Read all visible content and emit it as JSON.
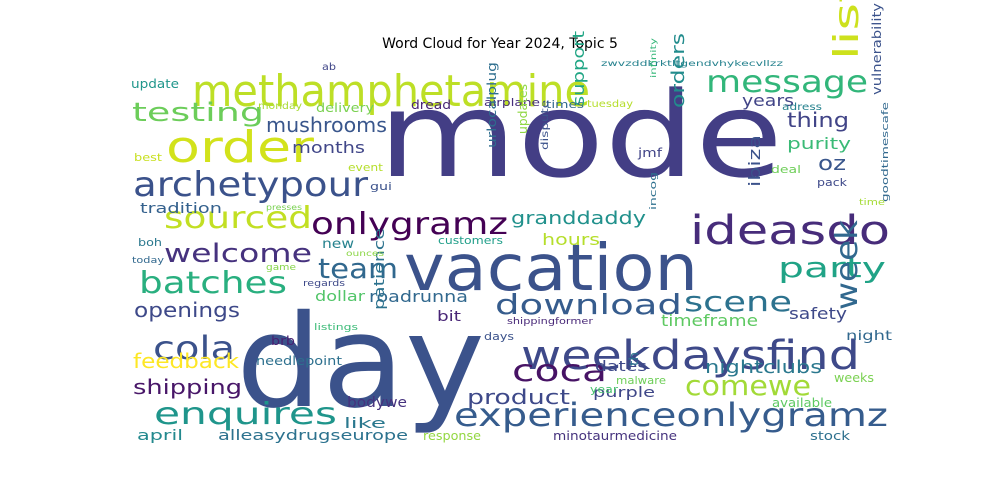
{
  "title": "Word Cloud for Year 2024, Topic 5",
  "words": [
    {
      "text": "mode",
      "color": "#433e85"
    },
    {
      "text": "day",
      "color": "#3b528b"
    },
    {
      "text": "vacation",
      "color": "#3b528b"
    },
    {
      "text": "methamphetamine",
      "color": "#bddf26"
    },
    {
      "text": "order",
      "color": "#d2e21b"
    },
    {
      "text": "weekdaysfind",
      "color": "#3e4989"
    },
    {
      "text": "ideasdo",
      "color": "#472c7a"
    },
    {
      "text": "archetypour",
      "color": "#3b528b"
    },
    {
      "text": "experienceonlygramz",
      "color": "#365c8d"
    },
    {
      "text": "sourced",
      "color": "#c2df23"
    },
    {
      "text": "onlygramz",
      "color": "#440154"
    },
    {
      "text": "listing",
      "color": "#cde11d"
    },
    {
      "text": "message",
      "color": "#32b67a"
    },
    {
      "text": "batches",
      "color": "#29af7f"
    },
    {
      "text": "welcome",
      "color": "#46327e"
    },
    {
      "text": "enquires",
      "color": "#1f958b"
    },
    {
      "text": "coca",
      "color": "#471365"
    },
    {
      "text": "download",
      "color": "#365c8d"
    },
    {
      "text": "scene",
      "color": "#2c728e"
    },
    {
      "text": "team",
      "color": "#31688e"
    },
    {
      "text": "party",
      "color": "#20a386"
    },
    {
      "text": "comewe",
      "color": "#a2da37"
    },
    {
      "text": "cola",
      "color": "#3b528b"
    },
    {
      "text": "week",
      "color": "#31688e"
    },
    {
      "text": "testing",
      "color": "#6ccd5a"
    },
    {
      "text": "product",
      "color": "#3e4989"
    },
    {
      "text": "granddaddy",
      "color": "#21918c"
    },
    {
      "text": "mushrooms",
      "color": "#39568c"
    },
    {
      "text": "shipping",
      "color": "#481668"
    },
    {
      "text": "openings",
      "color": "#3e4989"
    },
    {
      "text": "feedback",
      "color": "#fde725"
    },
    {
      "text": "thing",
      "color": "#414487"
    },
    {
      "text": "oz",
      "color": "#39568c"
    },
    {
      "text": "orders",
      "color": "#228c8d"
    },
    {
      "text": "nightclubs",
      "color": "#2a788e"
    },
    {
      "text": "purity",
      "color": "#3aba76"
    },
    {
      "text": "support",
      "color": "#21a685"
    },
    {
      "text": "ibiza",
      "color": "#3b528b"
    },
    {
      "text": "years",
      "color": "#414487"
    },
    {
      "text": "months",
      "color": "#404688"
    },
    {
      "text": "hours",
      "color": "#b5de2b"
    },
    {
      "text": "safety",
      "color": "#3e4989"
    },
    {
      "text": "timeframe",
      "color": "#5ec962"
    },
    {
      "text": "roadrunna",
      "color": "#31688e"
    },
    {
      "text": "dollar",
      "color": "#52c569"
    },
    {
      "text": "patience",
      "color": "#2c728e"
    },
    {
      "text": "bodywe",
      "color": "#46327e"
    },
    {
      "text": "like",
      "color": "#2a788e"
    },
    {
      "text": "alleasydrugseurope",
      "color": "#2c728e"
    },
    {
      "text": "april",
      "color": "#23898e"
    },
    {
      "text": "dates",
      "color": "#3e4989"
    },
    {
      "text": "purple",
      "color": "#3f4788"
    },
    {
      "text": "tradition",
      "color": "#34618d"
    },
    {
      "text": "bit",
      "color": "#482576"
    },
    {
      "text": "new",
      "color": "#26828e"
    },
    {
      "text": "night",
      "color": "#31688e"
    },
    {
      "text": "delivery",
      "color": "#7ad151"
    },
    {
      "text": "dread",
      "color": "#482475"
    },
    {
      "text": "update",
      "color": "#1f968b"
    },
    {
      "text": "brb",
      "color": "#482071"
    },
    {
      "text": "needlepoint",
      "color": "#2d708e"
    },
    {
      "text": "minotaurmedicine",
      "color": "#46337e"
    },
    {
      "text": "response",
      "color": "#93d741"
    },
    {
      "text": "stock",
      "color": "#2d708e"
    },
    {
      "text": "available",
      "color": "#5ec962"
    },
    {
      "text": "weeks",
      "color": "#7ad151"
    },
    {
      "text": "malware",
      "color": "#6ece58"
    },
    {
      "text": "year",
      "color": "#48c16e"
    },
    {
      "text": "th",
      "color": "#2c728e"
    },
    {
      "text": "days",
      "color": "#3b528b"
    },
    {
      "text": "customers",
      "color": "#1f9e89"
    },
    {
      "text": "gui",
      "color": "#3b528b"
    },
    {
      "text": "event",
      "color": "#b5de2b"
    },
    {
      "text": "best",
      "color": "#c8e020"
    },
    {
      "text": "monday",
      "color": "#a8db34"
    },
    {
      "text": "ab",
      "color": "#404688"
    },
    {
      "text": "zwvzddkrktltgendvhykecvllzz",
      "color": "#26828e"
    },
    {
      "text": "airplane",
      "color": "#472d7b"
    },
    {
      "text": "times",
      "color": "#31688e"
    },
    {
      "text": "tuesday",
      "color": "#b5de2b"
    },
    {
      "text": "infinity",
      "color": "#35b779"
    },
    {
      "text": "adress",
      "color": "#26828e"
    },
    {
      "text": "vulnerability",
      "color": "#3b528b"
    },
    {
      "text": "jmf",
      "color": "#414487"
    },
    {
      "text": "deal",
      "color": "#6ece58"
    },
    {
      "text": "pack",
      "color": "#3e4989"
    },
    {
      "text": "time",
      "color": "#a5db36"
    },
    {
      "text": "goodtimescafe",
      "color": "#31688e"
    },
    {
      "text": "incog",
      "color": "#2d708e"
    },
    {
      "text": "dispute",
      "color": "#3b528b"
    },
    {
      "text": "updates",
      "color": "#8fd744"
    },
    {
      "text": "urlocalplug",
      "color": "#2e6e8e"
    },
    {
      "text": "presses",
      "color": "#7ad151"
    },
    {
      "text": "boh",
      "color": "#2a788e"
    },
    {
      "text": "today",
      "color": "#31688e"
    },
    {
      "text": "game",
      "color": "#86d549"
    },
    {
      "text": "ounces",
      "color": "#8bd646"
    },
    {
      "text": "listings",
      "color": "#3aba76"
    },
    {
      "text": "shippingformer",
      "color": "#482878"
    },
    {
      "text": "regards",
      "color": "#3e4989"
    }
  ]
}
